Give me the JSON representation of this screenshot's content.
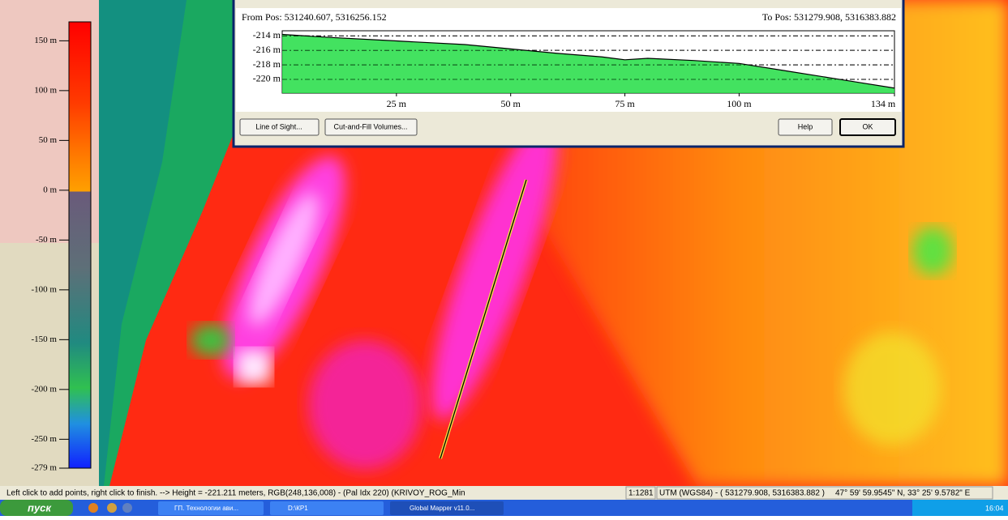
{
  "legend": {
    "lim": [
      -279,
      169
    ],
    "ticks": [
      {
        "value": 150,
        "label": "150 m"
      },
      {
        "value": 100,
        "label": "100 m"
      },
      {
        "value": 50,
        "label": "50 m"
      },
      {
        "value": 0,
        "label": "0 m"
      },
      {
        "value": -50,
        "label": "-50 m"
      },
      {
        "value": -100,
        "label": "-100 m"
      },
      {
        "value": -150,
        "label": "-150 m"
      },
      {
        "value": -200,
        "label": "-200 m"
      },
      {
        "value": -250,
        "label": "-250 m"
      },
      {
        "value": -279,
        "label": "-279 m"
      }
    ]
  },
  "profile": {
    "type": "area",
    "from": "From Pos: 531240.607, 5316256.152",
    "to": "To Pos: 531279.908, 5316383.882",
    "x": [
      0,
      10,
      25,
      40,
      50,
      60,
      70,
      75,
      80,
      90,
      100,
      110,
      120,
      125,
      134
    ],
    "elevation": [
      -213.8,
      -214.2,
      -214.7,
      -215.2,
      -215.8,
      -216.4,
      -216.9,
      -217.3,
      -217.1,
      -217.4,
      -217.8,
      -218.8,
      -219.8,
      -220.3,
      -221.2
    ],
    "color": "#22dd44",
    "xlim": [
      0,
      134
    ],
    "ylim": [
      -221.9,
      -213.3
    ],
    "xticks": [
      {
        "value": 25,
        "label": "25 m"
      },
      {
        "value": 50,
        "label": "50 m"
      },
      {
        "value": 75,
        "label": "75 m"
      },
      {
        "value": 100,
        "label": "100 m"
      },
      {
        "value": 134,
        "label": "134 m"
      }
    ],
    "yticks": [
      {
        "value": -214,
        "label": "-214 m"
      },
      {
        "value": -216,
        "label": "-216 m"
      },
      {
        "value": -218,
        "label": "-218 m"
      },
      {
        "value": -220,
        "label": "-220 m"
      }
    ]
  },
  "buttons": [
    "Line of Sight...",
    "Cut-and-Fill Volumes...",
    "Help",
    "OK"
  ],
  "status": {
    "message": "Left click to add points, right click to finish. --> Height = -221.211 meters, RGB(248,136,008) - (Pal Idx 220) (KRIVOY_ROG_Min",
    "scale": "1:1281",
    "coords": "UTM (WGS84) - ( 531279.908, 5316383.882 )",
    "latlon": "47° 59' 59.9545\" N, 33° 25' 9.5782\" E"
  },
  "taskbar": {
    "start": "пуск",
    "tasks": [
      "ГП. Технологии ави...",
      "D:\\КР1",
      "Global Mapper v11.0..."
    ],
    "clock": "16:04"
  }
}
